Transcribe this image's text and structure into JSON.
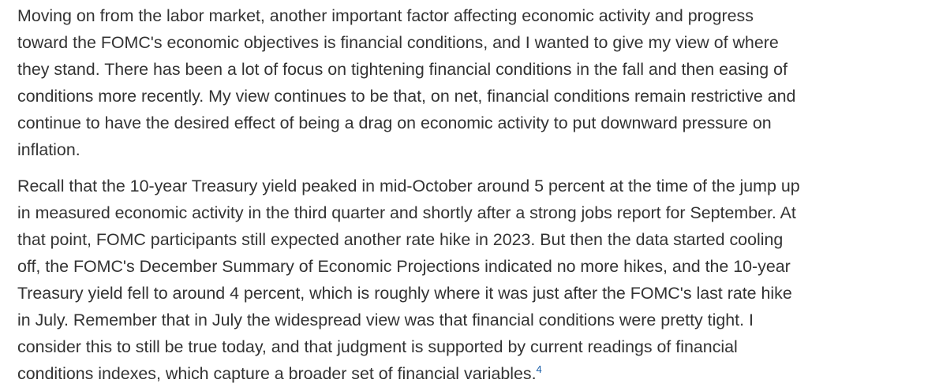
{
  "paragraphs": [
    {
      "lines": [
        "Moving on from the labor market, another important factor affecting economic activity and progress",
        "toward the FOMC's economic objectives is financial conditions, and I wanted to give my view of where",
        "they stand. There has been a lot of focus on tightening financial conditions in the fall and then easing of",
        "conditions more recently. My view continues to be that, on net, financial conditions remain restrictive and",
        "continue to have the desired effect of being a drag on economic activity to put downward pressure on",
        "inflation."
      ]
    },
    {
      "lines": [
        "Recall that the 10-year Treasury yield peaked in mid-October around 5 percent at the time of the jump up",
        "in measured economic activity in the third quarter and shortly after a strong jobs report for September. At",
        "that point, FOMC participants still expected another rate hike in 2023. But then the data started cooling",
        "off, the FOMC's December Summary of Economic Projections indicated no more hikes, and the 10-year",
        "Treasury yield fell to around 4 percent, which is roughly where it was just after the FOMC's last rate hike",
        "in July. Remember that in July the widespread view was that financial conditions were pretty tight. I",
        "consider this to still be true today, and that judgment is supported by current readings of financial",
        "conditions indexes, which capture a broader set of financial variables."
      ],
      "footnote": "4"
    }
  ],
  "colors": {
    "text": "#333333",
    "link": "#1a5ea8",
    "background": "#ffffff"
  }
}
